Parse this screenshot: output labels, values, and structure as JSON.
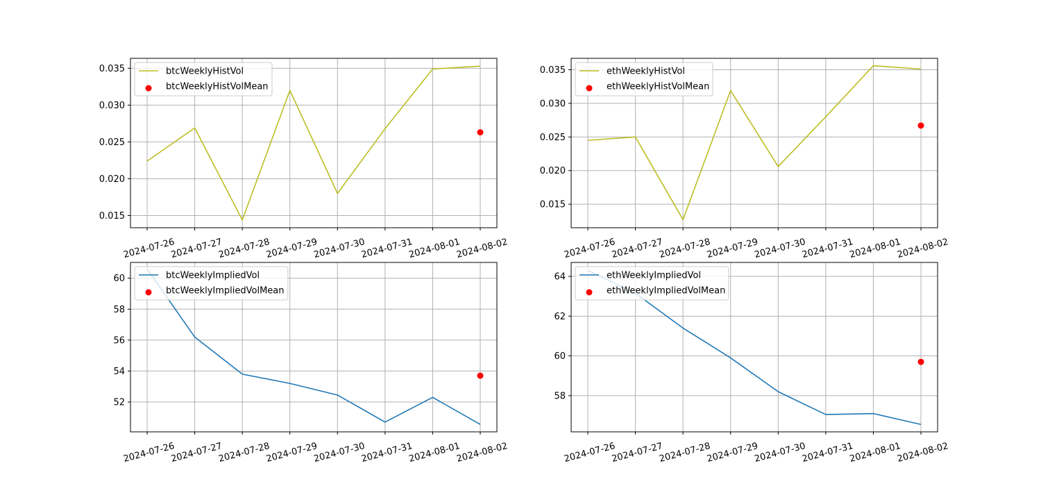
{
  "chart_data": [
    {
      "type": "line",
      "x": [
        "2024-07-26",
        "2024-07-27",
        "2024-07-28",
        "2024-07-29",
        "2024-07-30",
        "2024-07-31",
        "2024-08-01",
        "2024-08-02"
      ],
      "series": [
        {
          "name": "btcWeeklyHistVol",
          "kind": "line",
          "color": "#bcbd22",
          "values": [
            0.0224,
            0.0269,
            0.0144,
            0.032,
            0.018,
            0.0268,
            0.0349,
            0.0353
          ]
        },
        {
          "name": "btcWeeklyHistVolMean",
          "kind": "scatter",
          "color": "#ff0000",
          "points": [
            {
              "x": "2024-08-02",
              "y": 0.0263
            }
          ]
        }
      ],
      "yticks": [
        0.015,
        0.02,
        0.025,
        0.03,
        0.035
      ],
      "ytick_labels": [
        "0.015",
        "0.020",
        "0.025",
        "0.030",
        "0.035"
      ],
      "ylim": [
        0.01335,
        0.03635
      ],
      "grid": true,
      "legend": "upper-left"
    },
    {
      "type": "line",
      "x": [
        "2024-07-26",
        "2024-07-27",
        "2024-07-28",
        "2024-07-29",
        "2024-07-30",
        "2024-07-31",
        "2024-08-01",
        "2024-08-02"
      ],
      "series": [
        {
          "name": "ethWeeklyHistVol",
          "kind": "line",
          "color": "#bcbd22",
          "values": [
            0.0245,
            0.025,
            0.0127,
            0.0319,
            0.0206,
            0.028,
            0.0356,
            0.0351
          ]
        },
        {
          "name": "ethWeeklyHistVolMean",
          "kind": "scatter",
          "color": "#ff0000",
          "points": [
            {
              "x": "2024-08-02",
              "y": 0.0267
            }
          ]
        }
      ],
      "yticks": [
        0.015,
        0.02,
        0.025,
        0.03,
        0.035
      ],
      "ytick_labels": [
        "0.015",
        "0.020",
        "0.025",
        "0.030",
        "0.035"
      ],
      "ylim": [
        0.0115,
        0.0367
      ],
      "grid": true,
      "legend": "upper-left"
    },
    {
      "type": "line",
      "x": [
        "2024-07-26",
        "2024-07-27",
        "2024-07-28",
        "2024-07-29",
        "2024-07-30",
        "2024-07-31",
        "2024-08-01",
        "2024-08-02"
      ],
      "series": [
        {
          "name": "btcWeeklyImpliedVol",
          "kind": "line",
          "color": "#1f77b4",
          "values": [
            60.6,
            56.2,
            53.8,
            53.2,
            52.45,
            50.7,
            52.3,
            50.55
          ]
        },
        {
          "name": "btcWeeklyImpliedVolMean",
          "kind": "scatter",
          "color": "#ff0000",
          "points": [
            {
              "x": "2024-08-02",
              "y": 53.7
            }
          ]
        }
      ],
      "yticks": [
        52,
        54,
        56,
        58,
        60
      ],
      "ytick_labels": [
        "52",
        "54",
        "56",
        "58",
        "60"
      ],
      "ylim": [
        50.07,
        61.02
      ],
      "grid": true,
      "legend": "upper-left"
    },
    {
      "type": "line",
      "x": [
        "2024-07-26",
        "2024-07-27",
        "2024-07-28",
        "2024-07-29",
        "2024-07-30",
        "2024-07-31",
        "2024-08-01",
        "2024-08-02"
      ],
      "series": [
        {
          "name": "ethWeeklyImpliedVol",
          "kind": "line",
          "color": "#1f77b4",
          "values": [
            64.3,
            63.15,
            61.4,
            59.9,
            58.2,
            57.05,
            57.1,
            56.55
          ]
        },
        {
          "name": "ethWeeklyImpliedVolMean",
          "kind": "scatter",
          "color": "#ff0000",
          "points": [
            {
              "x": "2024-08-02",
              "y": 59.7
            }
          ]
        }
      ],
      "yticks": [
        58,
        60,
        62,
        64
      ],
      "ytick_labels": [
        "58",
        "60",
        "62",
        "64"
      ],
      "ylim": [
        56.18,
        64.7
      ],
      "grid": true,
      "legend": "upper-left"
    }
  ]
}
